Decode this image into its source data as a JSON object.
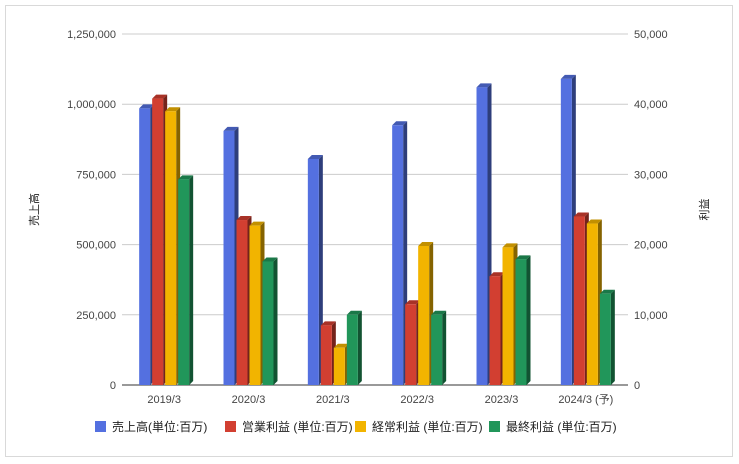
{
  "chart_data": {
    "type": "bar",
    "categories": [
      "2019/3",
      "2020/3",
      "2021/3",
      "2022/3",
      "2023/3",
      "2024/3 (予)"
    ],
    "series": [
      {
        "name": "売上高(単位:百万)",
        "axis": "left",
        "color": "#5470e0",
        "values": [
          985000,
          905000,
          805000,
          925000,
          1060000,
          1090000
        ]
      },
      {
        "name": "営業利益 (単位:百万)",
        "axis": "right",
        "color": "#d23f31",
        "values": [
          40800,
          23500,
          8500,
          11500,
          15500,
          24000
        ]
      },
      {
        "name": "経常利益 (単位:百万)",
        "axis": "right",
        "color": "#f2b400",
        "values": [
          39000,
          22700,
          5300,
          19800,
          19600,
          23000
        ]
      },
      {
        "name": "最終利益 (単位:百万)",
        "axis": "right",
        "color": "#21965a",
        "values": [
          29300,
          17600,
          10000,
          10000,
          17900,
          13000
        ]
      }
    ],
    "ylabel": "売上高",
    "y2label": "利益",
    "ylim": [
      0,
      1250000
    ],
    "y2lim": [
      0,
      50000
    ],
    "yticks": [
      "0",
      "250,000",
      "500,000",
      "750,000",
      "1,000,000",
      "1,250,000"
    ],
    "y2ticks": [
      "0",
      "10,000",
      "20,000",
      "30,000",
      "40,000",
      "50,000"
    ],
    "grid": true,
    "legend_position": "bottom"
  }
}
